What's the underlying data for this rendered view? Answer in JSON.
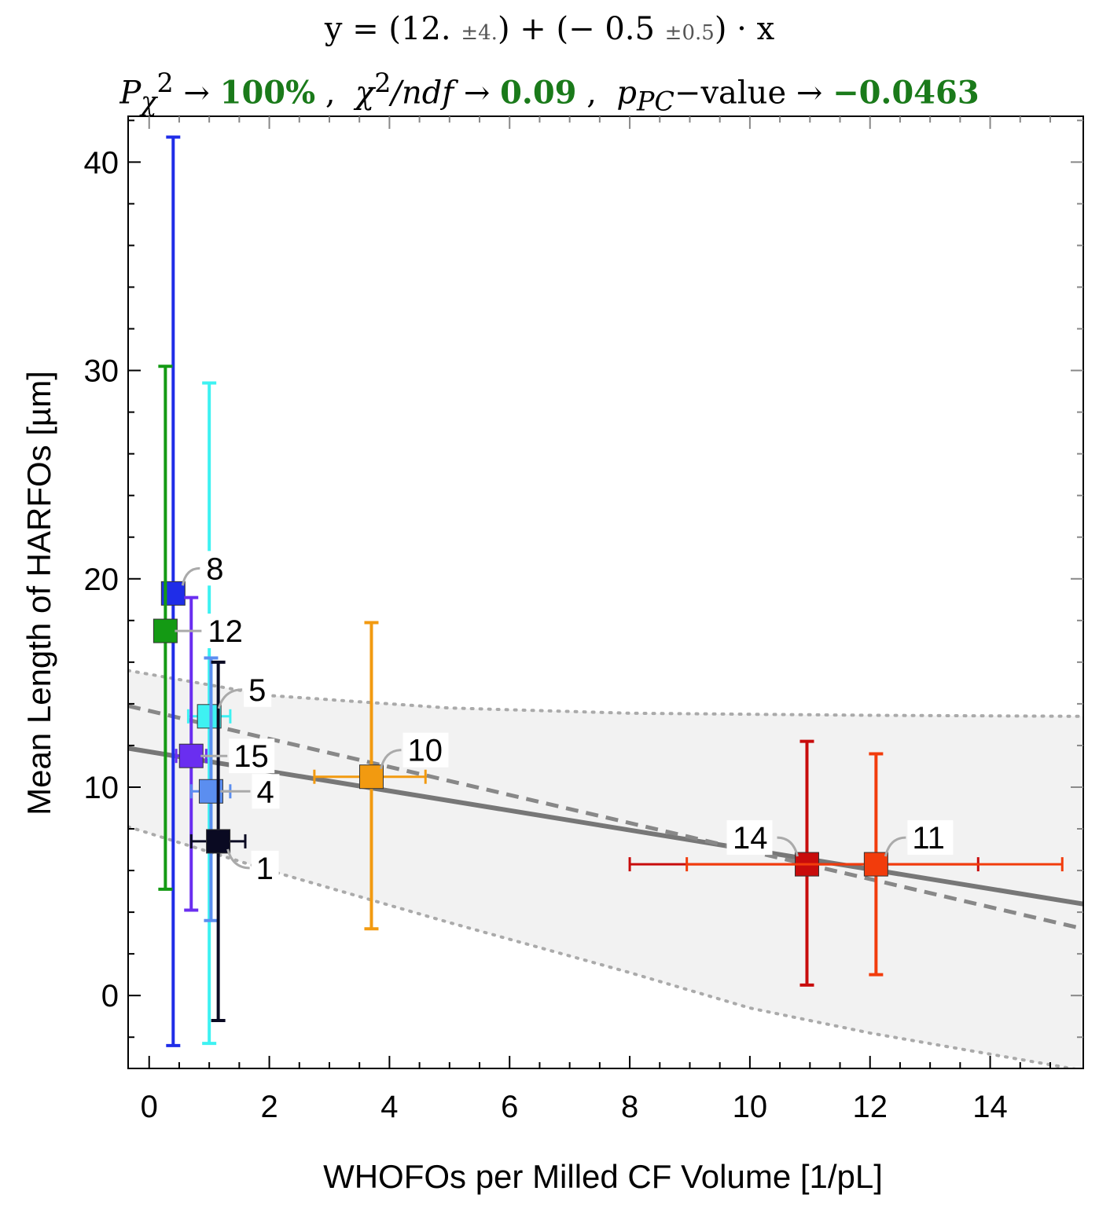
{
  "title_line1": {
    "lhs": "y = (12.",
    "err1": "±4.",
    "mid": ") + (− 0.5",
    "err2": "±0.5",
    "rhs": ") · x"
  },
  "title_line2": {
    "p_label": "P",
    "p_sub": "χ",
    "p_sup": "2",
    "arrow": "→",
    "p_value": "100%",
    "sep": ",",
    "chi_label": "χ",
    "chi_sup": "2",
    "chi_rest": "/ndf",
    "chi_value": "0.09",
    "ppc_label": "p",
    "ppc_sub": "PC",
    "ppc_rest": "−value",
    "ppc_value": "−0.0463"
  },
  "chart_data": {
    "type": "scatter",
    "xlabel": "WHOFOs per Milled CF Volume [1/pL]",
    "ylabel": "Mean Length of HARFOs [µm]",
    "xlim": [
      -0.35,
      15.55
    ],
    "ylim": [
      -3.5,
      42.2
    ],
    "xticks": [
      0,
      2,
      4,
      6,
      8,
      10,
      12,
      14
    ],
    "yticks": [
      0,
      10,
      20,
      30,
      40
    ],
    "xtick_labels": [
      "0",
      "2",
      "4",
      "6",
      "8",
      "10",
      "12",
      "14"
    ],
    "ytick_labels": [
      "0",
      "10",
      "20",
      "30",
      "40"
    ],
    "fit_line": {
      "intercept": 11.7,
      "slope": -0.47
    },
    "dashed_line": {
      "x0": -0.35,
      "y0": 13.9,
      "x1": 15.55,
      "y1": 3.2
    },
    "band": {
      "upper": [
        [
          -0.35,
          15.6
        ],
        [
          2,
          14.4
        ],
        [
          5,
          13.8
        ],
        [
          8,
          13.55
        ],
        [
          12,
          13.45
        ],
        [
          15.55,
          13.4
        ]
      ],
      "lower": [
        [
          -0.35,
          8.1
        ],
        [
          2,
          6.0
        ],
        [
          5,
          3.5
        ],
        [
          8,
          1.1
        ],
        [
          10,
          -0.6
        ],
        [
          12,
          -1.8
        ],
        [
          15.55,
          -3.6
        ]
      ]
    },
    "points": [
      {
        "label": "8",
        "x": 0.4,
        "y": 19.3,
        "y_low": -2.4,
        "y_high": 41.2,
        "x_low": 0.4,
        "x_high": 0.4,
        "color": "#1f2de8"
      },
      {
        "label": "12",
        "x": 0.27,
        "y": 17.5,
        "y_low": 5.1,
        "y_high": 30.2,
        "x_low": 0.27,
        "x_high": 0.27,
        "color": "#149a14"
      },
      {
        "label": "5",
        "x": 1.0,
        "y": 13.4,
        "y_low": -2.3,
        "y_high": 29.4,
        "x_low": 0.65,
        "x_high": 1.35,
        "color": "#3ef2f2"
      },
      {
        "label": "15",
        "x": 0.7,
        "y": 11.5,
        "y_low": 4.1,
        "y_high": 19.1,
        "x_low": 0.45,
        "x_high": 0.95,
        "color": "#6a2ef0"
      },
      {
        "label": "4",
        "x": 1.03,
        "y": 9.8,
        "y_low": 3.6,
        "y_high": 16.2,
        "x_low": 0.7,
        "x_high": 1.35,
        "color": "#5b8ef0"
      },
      {
        "label": "1",
        "x": 1.15,
        "y": 7.4,
        "y_low": -1.2,
        "y_high": 16.0,
        "x_low": 0.7,
        "x_high": 1.6,
        "color": "#0a0a22"
      },
      {
        "label": "10",
        "x": 3.7,
        "y": 10.5,
        "y_low": 3.2,
        "y_high": 17.9,
        "x_low": 2.75,
        "x_high": 4.6,
        "color": "#f29a10"
      },
      {
        "label": "14",
        "x": 10.95,
        "y": 6.3,
        "y_low": 0.5,
        "y_high": 12.2,
        "x_low": 8.0,
        "x_high": 13.8,
        "color": "#c80c0c"
      },
      {
        "label": "11",
        "x": 12.1,
        "y": 6.3,
        "y_low": 1.0,
        "y_high": 11.6,
        "x_low": 8.95,
        "x_high": 15.2,
        "color": "#f23c0c"
      }
    ]
  }
}
